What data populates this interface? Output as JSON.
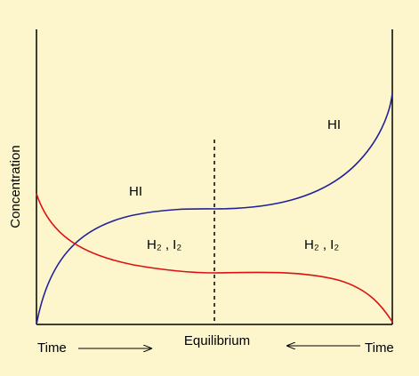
{
  "axis": {
    "y_label": "Concentration",
    "x_left": "Time",
    "x_middle": "Equilibrium",
    "x_right": "Time"
  },
  "labels": {
    "hi_left": "HI",
    "hi_right": "HI",
    "h2_i2_left": "H₂ , I₂",
    "h2_i2_right": "H₂ , I₂"
  }
}
